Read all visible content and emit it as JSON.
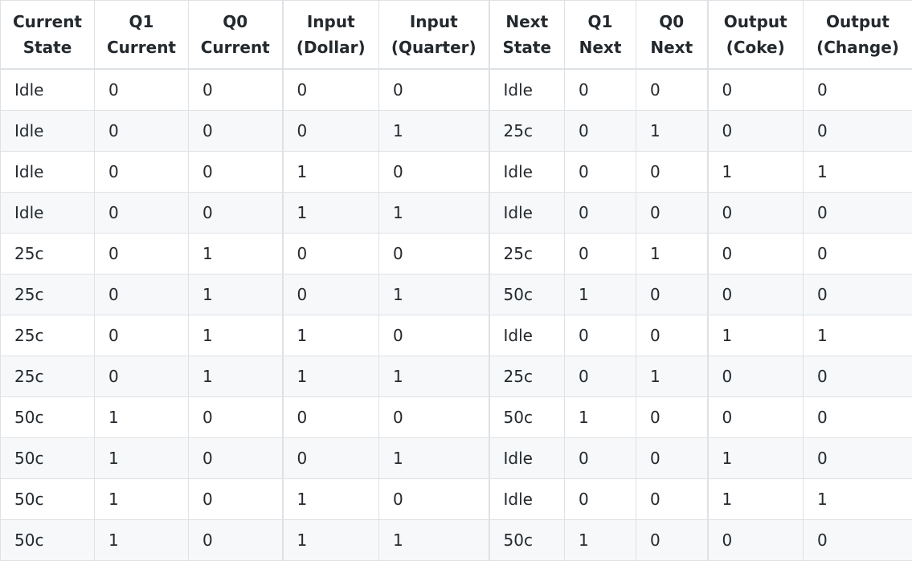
{
  "table": {
    "headers": [
      [
        "Current",
        "State"
      ],
      [
        "Q1",
        "Current"
      ],
      [
        "Q0",
        "Current"
      ],
      [
        "Input",
        "(Dollar)"
      ],
      [
        "Input",
        "(Quarter)"
      ],
      [
        "Next",
        "State"
      ],
      [
        "Q1",
        "Next"
      ],
      [
        "Q0",
        "Next"
      ],
      [
        "Output",
        "(Coke)"
      ],
      [
        "Output",
        "(Change)"
      ]
    ],
    "rows": [
      [
        "Idle",
        "0",
        "0",
        "0",
        "0",
        "Idle",
        "0",
        "0",
        "0",
        "0"
      ],
      [
        "Idle",
        "0",
        "0",
        "0",
        "1",
        "25c",
        "0",
        "1",
        "0",
        "0"
      ],
      [
        "Idle",
        "0",
        "0",
        "1",
        "0",
        "Idle",
        "0",
        "0",
        "1",
        "1"
      ],
      [
        "Idle",
        "0",
        "0",
        "1",
        "1",
        "Idle",
        "0",
        "0",
        "0",
        "0"
      ],
      [
        "25c",
        "0",
        "1",
        "0",
        "0",
        "25c",
        "0",
        "1",
        "0",
        "0"
      ],
      [
        "25c",
        "0",
        "1",
        "0",
        "1",
        "50c",
        "1",
        "0",
        "0",
        "0"
      ],
      [
        "25c",
        "0",
        "1",
        "1",
        "0",
        "Idle",
        "0",
        "0",
        "1",
        "1"
      ],
      [
        "25c",
        "0",
        "1",
        "1",
        "1",
        "25c",
        "0",
        "1",
        "0",
        "0"
      ],
      [
        "50c",
        "1",
        "0",
        "0",
        "0",
        "50c",
        "1",
        "0",
        "0",
        "0"
      ],
      [
        "50c",
        "1",
        "0",
        "0",
        "1",
        "Idle",
        "0",
        "0",
        "1",
        "0"
      ],
      [
        "50c",
        "1",
        "0",
        "1",
        "0",
        "Idle",
        "0",
        "0",
        "1",
        "1"
      ],
      [
        "50c",
        "1",
        "0",
        "1",
        "1",
        "50c",
        "1",
        "0",
        "0",
        "0"
      ]
    ]
  }
}
